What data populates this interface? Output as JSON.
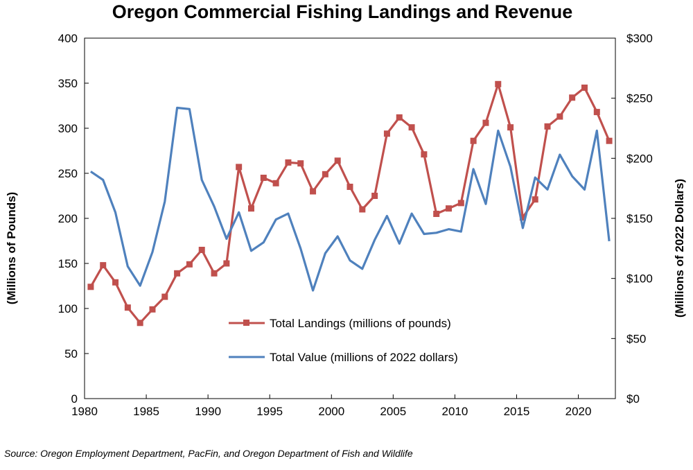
{
  "chart_data": {
    "type": "line",
    "title": "Oregon Commercial Fishing Landings and Revenue",
    "source": "Source: Oregon Employment Department, PacFin, and Oregon Department of Fish and Wildlife",
    "xlabel": "",
    "ylabel_left": "(Millions of Pounds)",
    "ylabel_right": "(Millions of 2022 Dollars)",
    "x": [
      1980,
      1981,
      1982,
      1983,
      1984,
      1985,
      1986,
      1987,
      1988,
      1989,
      1990,
      1991,
      1992,
      1993,
      1994,
      1995,
      1996,
      1997,
      1998,
      1999,
      2000,
      2001,
      2002,
      2003,
      2004,
      2005,
      2006,
      2007,
      2008,
      2009,
      2010,
      2011,
      2012,
      2013,
      2014,
      2015,
      2016,
      2017,
      2018,
      2019,
      2020,
      2021,
      2022
    ],
    "xlim": [
      1980,
      2023
    ],
    "x_ticks": [
      "1980",
      "1985",
      "1990",
      "1995",
      "2000",
      "2005",
      "2010",
      "2015",
      "2020"
    ],
    "ylim_left": [
      0,
      400
    ],
    "ylim_right": [
      0,
      300
    ],
    "y_ticks_left": [
      "0",
      "50",
      "100",
      "150",
      "200",
      "250",
      "300",
      "350",
      "400"
    ],
    "y_ticks_right": [
      "$0",
      "$50",
      "$100",
      "$150",
      "$200",
      "$250",
      "$300"
    ],
    "series": [
      {
        "name": "Total Landings (millions of pounds)",
        "axis": "left",
        "color": "#c0504d",
        "marker": "square",
        "values": [
          124,
          148,
          129,
          101,
          84,
          99,
          113,
          139,
          149,
          165,
          139,
          150,
          257,
          211,
          245,
          239,
          262,
          261,
          230,
          249,
          264,
          235,
          210,
          225,
          294,
          312,
          301,
          271,
          205,
          211,
          217,
          286,
          306,
          349,
          301,
          201,
          221,
          302,
          313,
          334,
          345,
          318,
          286
        ]
      },
      {
        "name": "Total Value (millions of 2022 dollars)",
        "axis": "right",
        "color": "#4f81bd",
        "marker": "none",
        "values": [
          189,
          182,
          155,
          110,
          94,
          122,
          164,
          242,
          241,
          182,
          160,
          133,
          155,
          123,
          130,
          149,
          154,
          125,
          90,
          121,
          135,
          115,
          108,
          132,
          152,
          129,
          154,
          137,
          138,
          141,
          139,
          191,
          162,
          223,
          193,
          142,
          184,
          174,
          203,
          185,
          174,
          223,
          131
        ]
      }
    ],
    "legend": "center-bottom inside plot"
  }
}
